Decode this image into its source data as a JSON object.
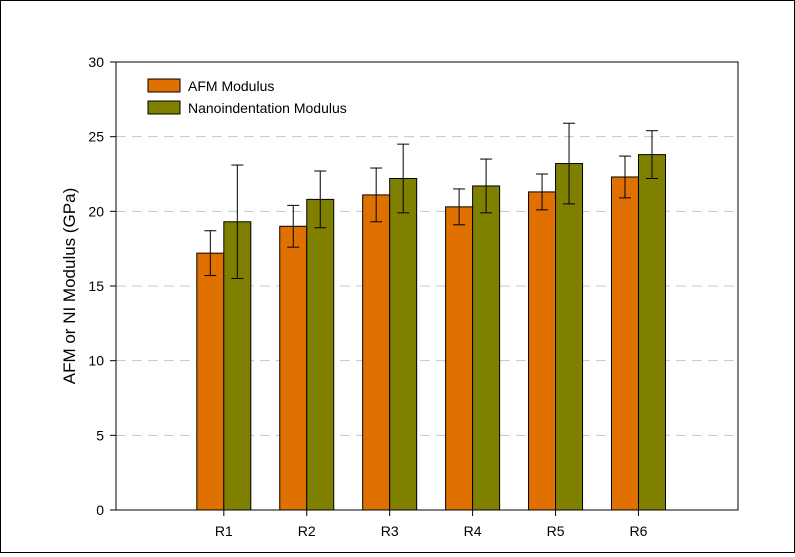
{
  "chart_data": {
    "type": "bar",
    "title": "",
    "xlabel": "",
    "ylabel": "AFM or NI Modulus (GPa)",
    "ylim": [
      0,
      30
    ],
    "yticks": [
      0,
      5,
      10,
      15,
      20,
      25,
      30
    ],
    "grid": "horizontal dashed",
    "legend_position": "top-left",
    "categories": [
      "R1",
      "R2",
      "R3",
      "R4",
      "R5",
      "R6"
    ],
    "series": [
      {
        "name": "AFM Modulus",
        "color": "#e07000",
        "values": [
          17.2,
          19.0,
          21.1,
          20.3,
          21.3,
          22.3
        ],
        "errors": [
          1.5,
          1.4,
          1.8,
          1.2,
          1.2,
          1.4
        ]
      },
      {
        "name": "Nanoindentation Modulus",
        "color": "#808000",
        "values": [
          19.3,
          20.8,
          22.2,
          21.7,
          23.2,
          23.8
        ],
        "errors": [
          3.8,
          1.9,
          2.3,
          1.8,
          2.7,
          1.6
        ]
      }
    ]
  }
}
